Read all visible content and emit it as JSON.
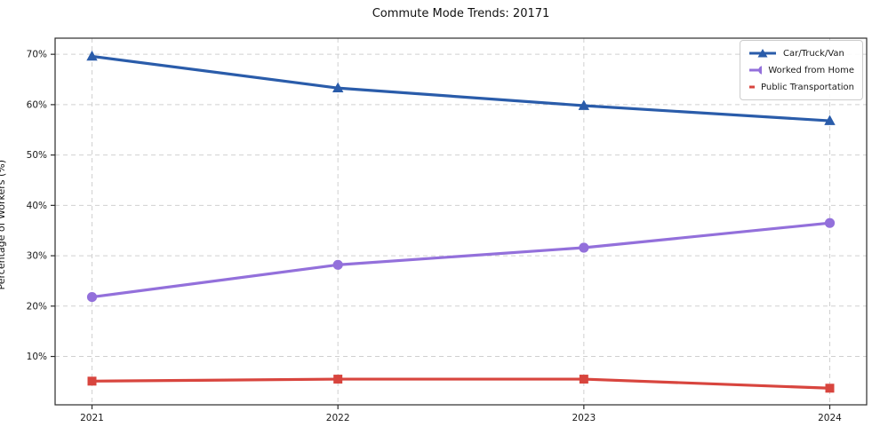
{
  "chart_data": {
    "type": "line",
    "title": "Commute Mode Trends: 20171",
    "xlabel": "",
    "ylabel": "Percentage of Workers (%)",
    "x": [
      2021,
      2022,
      2023,
      2024
    ],
    "x_tick_labels": [
      "2021",
      "2022",
      "2023",
      "2024"
    ],
    "yticks": [
      10,
      20,
      30,
      40,
      50,
      60,
      70
    ],
    "ytick_labels": [
      "10%",
      "20%",
      "30%",
      "40%",
      "50%",
      "60%",
      "70%"
    ],
    "xlim": [
      2020.85,
      2024.15
    ],
    "ylim": [
      0.4,
      73.2
    ],
    "grid": true,
    "legend_position": "upper right",
    "series": [
      {
        "name": "Car/Truck/Van",
        "color": "#2a5caa",
        "marker": "triangle",
        "values": [
          69.6,
          63.3,
          59.8,
          56.8
        ]
      },
      {
        "name": "Worked from Home",
        "color": "#9370db",
        "marker": "circle",
        "values": [
          21.8,
          28.2,
          31.6,
          36.5
        ]
      },
      {
        "name": "Public Transportation",
        "color": "#d8453e",
        "marker": "square",
        "values": [
          5.1,
          5.5,
          5.5,
          3.7
        ]
      }
    ],
    "colors": {
      "grid": "#d0d0d0",
      "spine": "#2b2b2b",
      "background": "#ffffff"
    }
  }
}
